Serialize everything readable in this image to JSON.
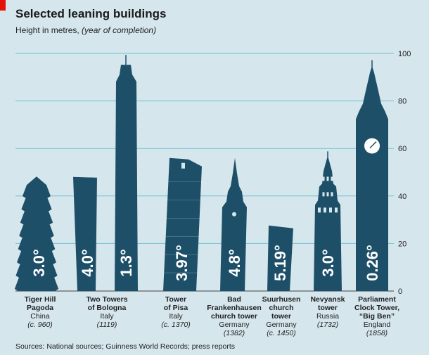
{
  "title": "Selected leaning buildings",
  "subtitle": {
    "main": "Height in metres,",
    "italic": "(year of completion)"
  },
  "source": "Sources: National sources; Guinness World Records; press reports",
  "colors": {
    "building": "#1d5068",
    "background": "#d6e6ed",
    "grid": "#6fbfd4",
    "accent": "#e3120b",
    "angle_text": "#ffffff"
  },
  "chart_data": {
    "type": "bar",
    "ylim": [
      0,
      100
    ],
    "yticks": [
      0,
      20,
      40,
      60,
      80,
      100
    ],
    "ytick_labels": [
      "0",
      "20",
      "40",
      "60",
      "80",
      "100"
    ],
    "axis_position": "right",
    "grid": true,
    "buildings": [
      {
        "name": "Tiger Hill Pagoda",
        "country": "China",
        "year": "(c. 960)",
        "height": 47,
        "lean": "3.0°"
      },
      {
        "name": "Two Towers of Bologna",
        "country": "Italy",
        "year": "(1119)",
        "height": 48,
        "lean": "4.0°"
      },
      {
        "name": "",
        "country": "",
        "year": "",
        "height": 97,
        "lean": "1.3°"
      },
      {
        "name": "Tower of Pisa",
        "country": "Italy",
        "year": "(c. 1370)",
        "height": 56,
        "lean": "3.97°"
      },
      {
        "name": "Bad Frankenhausen church tower",
        "country": "Germany",
        "year": "(1382)",
        "height": 56,
        "lean": "4.8°"
      },
      {
        "name": "Suurhusen church tower",
        "country": "Germany",
        "year": "(c. 1450)",
        "height": 27,
        "lean": "5.19°"
      },
      {
        "name": "Nevyansk tower",
        "country": "Russia",
        "year": "(1732)",
        "height": 57,
        "lean": "3.0°"
      },
      {
        "name": "Parliament Clock Tower, “Big Ben”",
        "country": "England",
        "year": "(1858)",
        "height": 96,
        "lean": "0.26°"
      }
    ]
  },
  "labels": [
    {
      "name_lines": [
        "Tiger Hill",
        "Pagoda"
      ],
      "country": "China",
      "year": "(c. 960)"
    },
    {
      "name_lines": [
        "Two Towers",
        "of Bologna"
      ],
      "country": "Italy",
      "year": "(1119)"
    },
    {
      "name_lines": [
        "Tower",
        "of Pisa"
      ],
      "country": "Italy",
      "year": "(c. 1370)"
    },
    {
      "name_lines": [
        "Bad",
        "Frankenhausen",
        "church tower"
      ],
      "country": "Germany",
      "year": "(1382)"
    },
    {
      "name_lines": [
        "Suurhusen",
        "church",
        "tower"
      ],
      "country": "Germany",
      "year": "(c. 1450)"
    },
    {
      "name_lines": [
        "Nevyansk",
        "tower"
      ],
      "country": "Russia",
      "year": "(1732)"
    },
    {
      "name_lines": [
        "Parliament",
        "Clock Tower,",
        "“Big Ben”"
      ],
      "country": "England",
      "year": "(1858)"
    }
  ]
}
